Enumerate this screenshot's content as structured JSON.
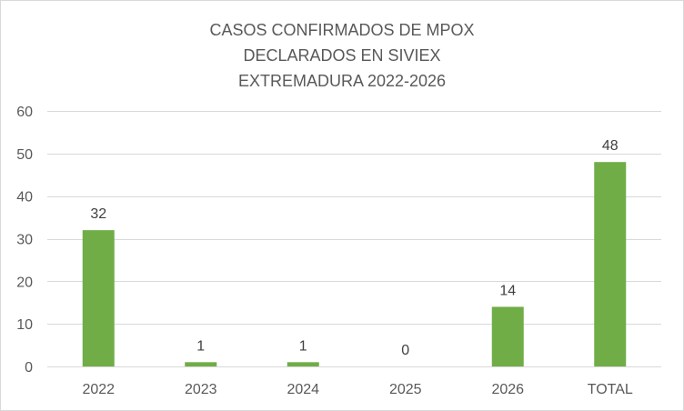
{
  "chart_data": {
    "type": "bar",
    "title_lines": [
      "CASOS CONFIRMADOS DE MPOX",
      "DECLARADOS EN SIVIEX",
      "EXTREMADURA 2022-2026"
    ],
    "categories": [
      "2022",
      "2023",
      "2024",
      "2025",
      "2026",
      "TOTAL"
    ],
    "values": [
      32,
      1,
      1,
      0,
      14,
      48
    ],
    "data_labels": [
      "32",
      "1",
      "1",
      "0",
      "14",
      "48"
    ],
    "yticks": [
      "0",
      "10",
      "20",
      "30",
      "40",
      "50",
      "60"
    ],
    "ylim": [
      0,
      60
    ],
    "grid": true,
    "legend": "none",
    "bar_color": "#70ad47",
    "gridline_color": "#d9d9d9",
    "text_color": "#595959"
  }
}
